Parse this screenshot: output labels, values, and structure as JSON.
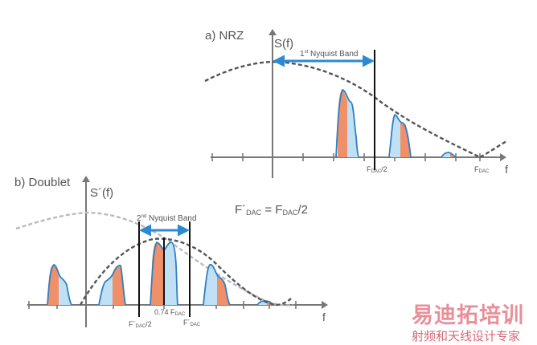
{
  "panel_a": {
    "label": "a) NRZ",
    "y_axis": "S(f)",
    "x_axis": "f",
    "band_label_prefix": "1",
    "band_label_sup": "st",
    "band_label_suffix": " Nyquist Band",
    "tick_half_main": "F",
    "tick_half_sub": "DAC",
    "tick_half_tail": "/2",
    "tick_full_main": "F",
    "tick_full_sub": "DAC"
  },
  "panel_b": {
    "label": "b) Doublet",
    "y_axis": "S´(f)",
    "x_axis": "f",
    "band_label_prefix": "2",
    "band_label_sup": "nd",
    "band_label_suffix": " Nyquist Band",
    "tick_mid_main": "0.74 F",
    "tick_mid_sub": "DAC",
    "tick_left_main": "F´",
    "tick_left_sub": "DAC",
    "tick_left_tail": "/2",
    "tick_right_main": "F´",
    "tick_right_sub": "DAC"
  },
  "equation": {
    "lhs_main": "F´",
    "lhs_sub": "DAC",
    "eq": " =  F",
    "rhs_sub": "DAC",
    "rhs_tail": "/2"
  },
  "watermark": {
    "title": "易迪拓培训",
    "subtitle": "射频和天线设计专家"
  },
  "colors": {
    "spectrum_blue": "#bfe0f5",
    "spectrum_orange": "#f0906a",
    "outline_blue": "#2f7fc1",
    "arrow_blue": "#2b8ad2",
    "envelope_dark": "#555555",
    "envelope_light": "#bbbbbb"
  }
}
